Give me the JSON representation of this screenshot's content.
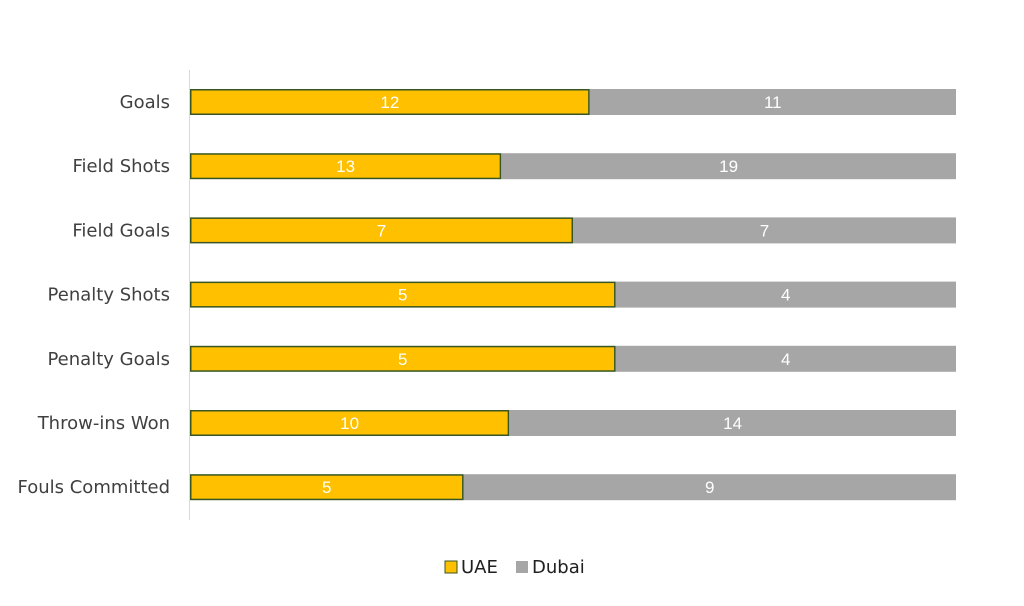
{
  "chart_data": {
    "type": "bar",
    "orientation": "horizontal",
    "stacking": "percent",
    "categories": [
      "Goals",
      "Field Shots",
      "Field Goals",
      "Penalty Shots",
      "Penalty Goals",
      "Throw-ins Won",
      "Fouls Committed"
    ],
    "series": [
      {
        "name": "UAE",
        "values": [
          12,
          13,
          7,
          5,
          5,
          10,
          5
        ],
        "color": "#FFC000",
        "border": "#375623"
      },
      {
        "name": "Dubai",
        "values": [
          11,
          19,
          7,
          4,
          4,
          14,
          9
        ],
        "color": "#A6A6A6"
      }
    ],
    "title": "",
    "xlabel": "",
    "ylabel": "",
    "grid": false,
    "legend": "bottom",
    "data_labels": true
  }
}
